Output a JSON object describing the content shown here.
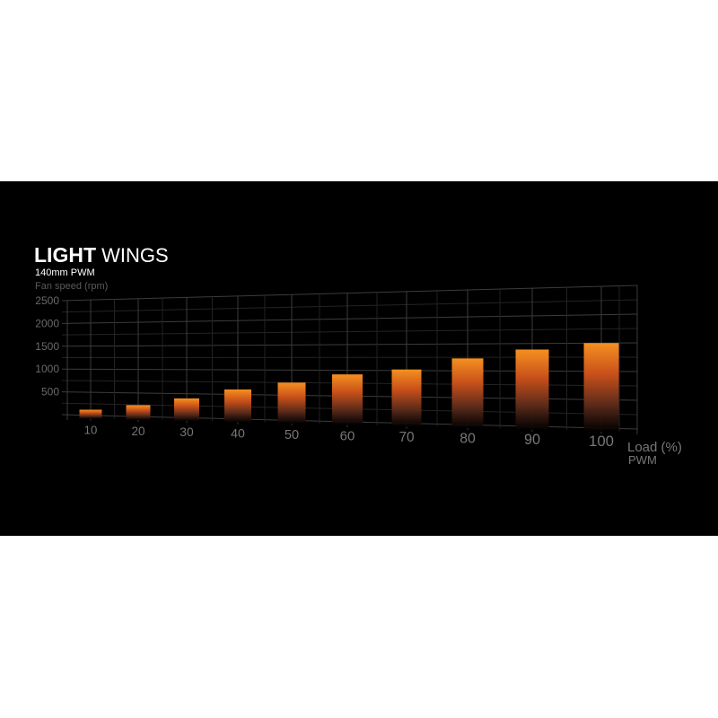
{
  "header": {
    "title_bold": "LIGHT",
    "title_light": "WINGS",
    "subtitle": "140mm PWM"
  },
  "colors": {
    "background": "#000000",
    "bar_top": "#f28a1a",
    "bar_mid": "#c4501a",
    "grid": "#3a3a3a"
  },
  "chart_data": {
    "type": "bar",
    "title": "LIGHT WINGS",
    "subtitle": "140mm PWM",
    "ylabel": "Fan speed (rpm)",
    "xlabel": "Load (%)",
    "xlabel2": "PWM",
    "categories": [
      "10",
      "20",
      "30",
      "40",
      "50",
      "60",
      "70",
      "80",
      "90",
      "100"
    ],
    "values": [
      120,
      240,
      400,
      600,
      750,
      920,
      1020,
      1230,
      1390,
      1500
    ],
    "yticks": [
      "500",
      "1000",
      "1500",
      "2000",
      "2500"
    ],
    "ylim": [
      0,
      2500
    ],
    "grid": true,
    "perspective": true
  }
}
